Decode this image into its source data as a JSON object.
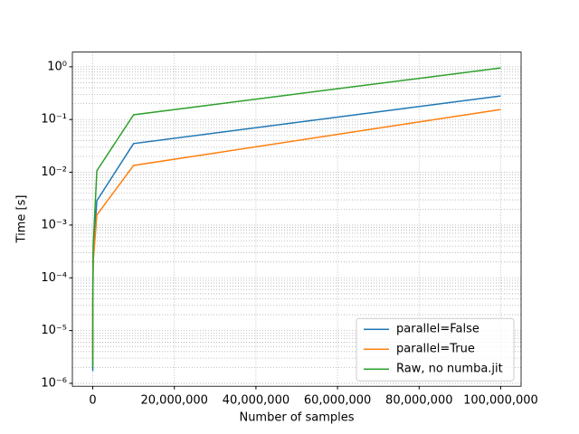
{
  "chart_data": {
    "type": "line",
    "xlabel": "Number of samples",
    "ylabel": "Time [s]",
    "x": [
      100,
      1000,
      10000,
      100000,
      1000000,
      10000000,
      100000000
    ],
    "series": [
      {
        "name": "parallel=False",
        "color": "#1f77b4",
        "values": [
          1.7e-06,
          5e-06,
          3e-05,
          0.0003,
          0.0029,
          0.035,
          0.28
        ]
      },
      {
        "name": "parallel=True",
        "color": "#ff7f0e",
        "values": [
          3e-06,
          8e-06,
          4e-05,
          0.0002,
          0.00155,
          0.0135,
          0.155
        ]
      },
      {
        "name": "Raw, no numba.jit",
        "color": "#2ca02c",
        "values": [
          2e-06,
          6e-06,
          4e-05,
          0.0004,
          0.0107,
          0.123,
          0.95
        ]
      }
    ],
    "xlim": [
      -5000000,
      105000000
    ],
    "xticks": [
      {
        "value": 0,
        "label": "0"
      },
      {
        "value": 20000000,
        "label": "20,000,000"
      },
      {
        "value": 40000000,
        "label": "40,000,000"
      },
      {
        "value": 60000000,
        "label": "60,000,000"
      },
      {
        "value": 80000000,
        "label": "80,000,000"
      },
      {
        "value": 100000000,
        "label": "100,000,000"
      }
    ],
    "ylim": [
      8.8e-07,
      1.9
    ],
    "yscale": "log",
    "yticks": [
      {
        "value": 1e-06,
        "label": "10⁻⁶"
      },
      {
        "value": 1e-05,
        "label": "10⁻⁵"
      },
      {
        "value": 0.0001,
        "label": "10⁻⁴"
      },
      {
        "value": 0.001,
        "label": "10⁻³"
      },
      {
        "value": 0.01,
        "label": "10⁻²"
      },
      {
        "value": 0.1,
        "label": "10⁻¹"
      },
      {
        "value": 1,
        "label": "10⁰"
      }
    ],
    "yminorticks": [
      2e-06,
      3e-06,
      4e-06,
      5e-06,
      6e-06,
      7e-06,
      8e-06,
      9e-06,
      2e-05,
      3e-05,
      4e-05,
      5e-05,
      6e-05,
      7e-05,
      8e-05,
      9e-05,
      0.0002,
      0.0003,
      0.0004,
      0.0005,
      0.0006,
      0.0007,
      0.0008,
      0.0009,
      0.002,
      0.003,
      0.004,
      0.005,
      0.006,
      0.007,
      0.008,
      0.009,
      0.02,
      0.03,
      0.04,
      0.05,
      0.06,
      0.07,
      0.08,
      0.09,
      0.2,
      0.3,
      0.4,
      0.5,
      0.6,
      0.7,
      0.8,
      0.9
    ],
    "grid": true,
    "legend": "lower right"
  }
}
